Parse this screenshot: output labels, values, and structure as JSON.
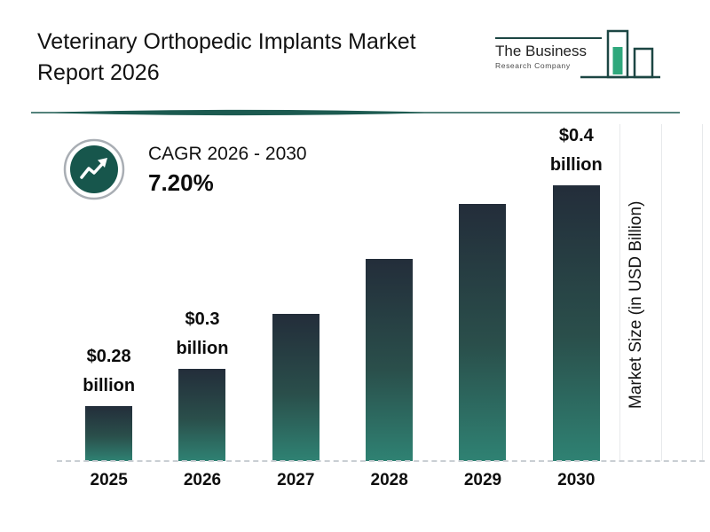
{
  "header": {
    "title": "Veterinary Orthopedic Implants Market Report 2026",
    "logo": {
      "line1": "The Business",
      "line2": "Research Company"
    }
  },
  "cagr": {
    "label": "CAGR 2026 - 2030",
    "value": "7.20%"
  },
  "chart_data": {
    "type": "bar",
    "title": "Veterinary Orthopedic Implants Market Report 2026",
    "categories": [
      "2025",
      "2026",
      "2027",
      "2028",
      "2029",
      "2030"
    ],
    "values": [
      0.28,
      0.3,
      0.33,
      0.36,
      0.39,
      0.4
    ],
    "value_labels": [
      "$0.28 billion",
      "$0.3 billion",
      "",
      "",
      "",
      "$0.4 billion"
    ],
    "xlabel": "",
    "ylabel": "Market Size (in USD Billion)",
    "ylim": [
      0.25,
      0.42
    ],
    "grid": "dashed baseline, faint right vertical gridlines",
    "legend": "none",
    "bar_color_top": "#232d3a",
    "bar_color_mid": "#2a4f4b",
    "bar_color_bottom": "#2f8273"
  },
  "colors": {
    "accent_teal": "#1c5a50",
    "logo_outline": "#1c4643",
    "logo_green": "#2fa87c",
    "cagr_circle": "#17564c",
    "cagr_ring": "#a9aeb4",
    "text": "#111111"
  }
}
